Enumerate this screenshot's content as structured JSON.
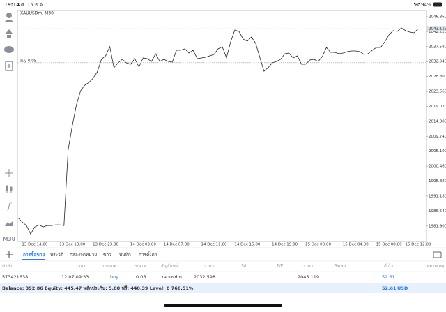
{
  "status_bar": {
    "time": "19:14",
    "date": "ศ. 15 ธ.ค.",
    "battery": "94%"
  },
  "sidebar": {
    "timeframe": "M30"
  },
  "chart_data": {
    "type": "line",
    "title": "XAUUSDm, M30",
    "color": "#222222",
    "categories": [
      null,
      null,
      null,
      null,
      "13 Dec 14:00",
      null,
      null,
      null,
      null,
      null,
      null,
      null,
      null,
      "13 Dec 18:00",
      null,
      null,
      null,
      null,
      null,
      null,
      null,
      "13 Dec 23:00",
      null,
      null,
      null,
      null,
      null,
      null,
      null,
      null,
      "14 Dec 03:00",
      null,
      null,
      null,
      null,
      null,
      null,
      null,
      "14 Dec 07:00",
      null,
      null,
      null,
      null,
      null,
      null,
      null,
      null,
      "14 Dec 11:00",
      null,
      null,
      null,
      null,
      null,
      null,
      null,
      "14 Dec 15:00",
      null,
      null,
      null,
      null,
      null,
      null,
      null,
      null,
      "14 Dec 19:00",
      null,
      null,
      null,
      null,
      null,
      null,
      null,
      "15 Dec 00:00",
      null,
      null,
      null,
      null,
      null,
      null,
      null,
      null,
      "15 Dec 04:00",
      null,
      null,
      null,
      null,
      null,
      null,
      null,
      "15 Dec 08:00",
      null,
      null,
      null,
      null,
      null,
      null,
      "15 Dec 12:00"
    ],
    "values": [
      1984.42,
      1983.12,
      1982.04,
      1979.44,
      1981.6,
      1982.25,
      1981.6,
      1982.04,
      1982.04,
      1982.25,
      1982.25,
      1982.04,
      2005.45,
      2013.04,
      2019.54,
      2023.88,
      2025.61,
      2026.48,
      2027.78,
      2029.73,
      2033.64,
      2034.72,
      2037.54,
      2031.03,
      2032.55,
      2033.64,
      2032.55,
      2032.12,
      2033.85,
      2031.25,
      2034.07,
      2033.85,
      2032.98,
      2035.37,
      2032.98,
      2033.64,
      2032.98,
      2032.77,
      2036.45,
      2036.45,
      2036.89,
      2035.59,
      2036.45,
      2033.85,
      2034.07,
      2034.29,
      2034.72,
      2035.15,
      2036.89,
      2037.54,
      2034.07,
      2039.06,
      2042.74,
      2042.31,
      2039.92,
      2039.27,
      2040.57,
      2038.62,
      2034.29,
      2029.95,
      2031.03,
      2032.55,
      2032.98,
      2033.64,
      2035.37,
      2035.59,
      2034.07,
      2034.72,
      2032.12,
      2032.12,
      2033.42,
      2033.64,
      2032.98,
      2034.5,
      2037.32,
      2035.8,
      2035.8,
      2035.37,
      2035.59,
      2036.02,
      2036.24,
      2036.24,
      2036.02,
      2035.15,
      2035.37,
      2036.45,
      2037.32,
      2037.32,
      2039.06,
      2041.22,
      2042.52,
      2042.31,
      2043.39,
      2042.52,
      2042.09,
      2041.87,
      2043.12
    ],
    "ylim": [
      1977.3,
      2048.8
    ],
    "yticks": [
      {
        "value": 2046.86,
        "label": "2046.860"
      },
      {
        "value": 2042.22,
        "label": "2042.220"
      },
      {
        "value": 2037.58,
        "label": "2037.580"
      },
      {
        "value": 2032.94,
        "label": "2032.940"
      },
      {
        "value": 2028.3,
        "label": "2028.300"
      },
      {
        "value": 2023.66,
        "label": "2023.660"
      },
      {
        "value": 2019.02,
        "label": "2019.020"
      },
      {
        "value": 2014.38,
        "label": "2014.380"
      },
      {
        "value": 2009.74,
        "label": "2009.740"
      },
      {
        "value": 2005.1,
        "label": "2005.100"
      },
      {
        "value": 2000.46,
        "label": "2000.460"
      },
      {
        "value": 1995.82,
        "label": "1995.820"
      },
      {
        "value": 1991.18,
        "label": "1991.180"
      },
      {
        "value": 1986.54,
        "label": "1986.540"
      },
      {
        "value": 1981.9,
        "label": "1981.900"
      }
    ],
    "current_price": 2043.119,
    "position_line": {
      "label": "buy 0.05",
      "value": 2032.598
    }
  },
  "tabs": [
    "การซื้อขาย",
    "ประวัติ",
    "กล่องจดหมาย",
    "ข่าว",
    "บันทึก",
    "การตั้งค่า"
  ],
  "table": {
    "columns": [
      "ค่าส่ง",
      "เวลา",
      "ประเภท",
      "ขนาด",
      "สัญลักษณ์",
      "ราคา",
      "S/L",
      "T/P",
      "ราคา",
      "Swap",
      "กำไร",
      "หมายเหตุ"
    ],
    "row": {
      "order": "573421638",
      "time": "12.07 09:33",
      "type": "buy",
      "volume": "0.05",
      "symbol": "xauusdm",
      "open_price": "2032.598",
      "current_price": "2043.119",
      "profit": "52.61"
    }
  },
  "footer": {
    "summary": "Balance: 392.86 Equity: 445.47 พลักประกัน: 5.08 ฟรี: 440.39 Level: 8 766.51%",
    "profit": "52.61",
    "currency": "USD"
  }
}
